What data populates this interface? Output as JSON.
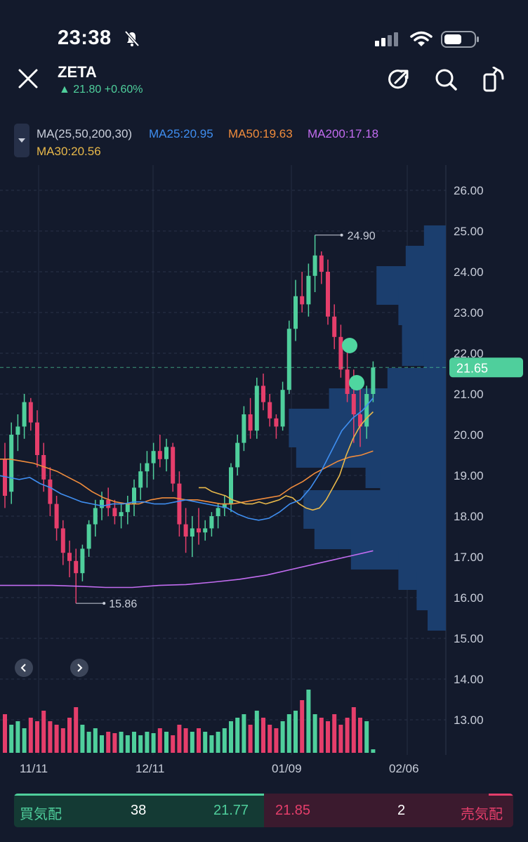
{
  "status_bar": {
    "time": "23:38"
  },
  "header": {
    "ticker": "ZETA",
    "price_change": "▲ 21.80 +0.60%",
    "close_icon": "close-icon",
    "share_icon": "share-icon",
    "search_icon": "search-icon",
    "rotate_icon": "rotate-icon"
  },
  "indicator": {
    "toggle_icon": "caret-down-icon",
    "ma_params": "MA(25,50,200,30)",
    "ma25": "MA25:20.95",
    "ma50": "MA50:19.63",
    "ma200": "MA200:17.18",
    "ma30": "MA30:20.56"
  },
  "colors": {
    "up": "#4fcf9c",
    "down": "#e53e6b",
    "ma25": "#3f8ef0",
    "ma50": "#f08c3c",
    "ma200": "#c26cf0",
    "ma30": "#e8b84a",
    "volume_profile": "#1b3e6e",
    "background": "#131a2c"
  },
  "chart_data": {
    "type": "candlestick",
    "y_axis": {
      "ticks": [
        "26.00",
        "25.00",
        "24.00",
        "23.00",
        "22.00",
        "21.00",
        "20.00",
        "19.00",
        "18.00",
        "17.00",
        "16.00",
        "15.00",
        "14.00",
        "13.00"
      ],
      "range": [
        12.4,
        26.5
      ]
    },
    "x_axis": {
      "ticks": [
        "11/11",
        "12/11",
        "01/09",
        "02/06"
      ]
    },
    "current_price_label": "21.65",
    "current_price": 21.65,
    "high_annotation": {
      "label": "24.90",
      "value": 24.9
    },
    "low_annotation": {
      "label": "15.86",
      "value": 15.86
    },
    "candles": [
      [
        19.4,
        19.8,
        18.2,
        18.5
      ],
      [
        18.6,
        20.3,
        18.3,
        20.0
      ],
      [
        20.0,
        20.5,
        19.6,
        20.2
      ],
      [
        20.2,
        21.0,
        19.9,
        20.8
      ],
      [
        20.8,
        20.9,
        20.1,
        20.3
      ],
      [
        20.3,
        20.6,
        19.2,
        19.5
      ],
      [
        19.5,
        19.8,
        18.6,
        18.9
      ],
      [
        18.9,
        19.2,
        18.0,
        18.3
      ],
      [
        18.3,
        18.5,
        17.4,
        17.7
      ],
      [
        17.7,
        17.9,
        16.8,
        17.1
      ],
      [
        17.1,
        17.4,
        16.5,
        16.9
      ],
      [
        16.9,
        17.2,
        15.86,
        16.6
      ],
      [
        16.6,
        17.3,
        16.4,
        17.2
      ],
      [
        17.2,
        17.9,
        17.0,
        17.8
      ],
      [
        17.8,
        18.4,
        17.5,
        18.2
      ],
      [
        18.2,
        18.6,
        17.9,
        18.4
      ],
      [
        18.4,
        18.7,
        18.0,
        18.2
      ],
      [
        18.2,
        18.4,
        17.8,
        18.0
      ],
      [
        18.0,
        18.3,
        17.7,
        18.1
      ],
      [
        18.1,
        18.5,
        17.8,
        18.3
      ],
      [
        18.3,
        18.9,
        18.0,
        18.7
      ],
      [
        18.7,
        19.3,
        18.4,
        19.1
      ],
      [
        19.1,
        19.6,
        18.7,
        19.3
      ],
      [
        19.3,
        19.8,
        18.9,
        19.6
      ],
      [
        19.6,
        20.0,
        19.2,
        19.4
      ],
      [
        19.4,
        19.9,
        19.1,
        19.7
      ],
      [
        19.7,
        19.8,
        18.6,
        18.8
      ],
      [
        18.8,
        19.1,
        17.5,
        17.8
      ],
      [
        17.8,
        18.2,
        17.1,
        17.5
      ],
      [
        17.5,
        18.0,
        17.0,
        17.7
      ],
      [
        17.7,
        18.2,
        17.3,
        17.6
      ],
      [
        17.6,
        17.9,
        17.4,
        17.7
      ],
      [
        17.7,
        18.1,
        17.5,
        18.0
      ],
      [
        18.0,
        18.3,
        17.7,
        18.2
      ],
      [
        18.2,
        18.5,
        18.0,
        18.3
      ],
      [
        18.3,
        19.3,
        18.1,
        19.2
      ],
      [
        19.2,
        20.0,
        19.0,
        19.8
      ],
      [
        19.8,
        20.7,
        19.6,
        20.5
      ],
      [
        20.5,
        20.9,
        19.9,
        20.1
      ],
      [
        20.1,
        21.4,
        19.9,
        21.2
      ],
      [
        21.2,
        21.5,
        20.6,
        20.8
      ],
      [
        20.8,
        21.0,
        20.2,
        20.4
      ],
      [
        20.4,
        20.5,
        19.9,
        20.2
      ],
      [
        20.2,
        21.3,
        20.1,
        21.1
      ],
      [
        21.1,
        22.8,
        21.0,
        22.6
      ],
      [
        22.6,
        23.8,
        22.3,
        23.4
      ],
      [
        23.4,
        24.0,
        23.0,
        23.2
      ],
      [
        23.2,
        24.2,
        22.9,
        23.9
      ],
      [
        23.9,
        24.9,
        23.5,
        24.4
      ],
      [
        24.4,
        24.5,
        23.7,
        24.0
      ],
      [
        24.0,
        24.3,
        22.7,
        22.9
      ],
      [
        22.9,
        23.2,
        22.1,
        22.4
      ],
      [
        22.4,
        22.7,
        21.4,
        21.6
      ],
      [
        21.6,
        22.2,
        20.8,
        21.0
      ],
      [
        21.0,
        21.6,
        19.8,
        20.5
      ],
      [
        20.5,
        21.3,
        19.7,
        20.2
      ],
      [
        20.2,
        21.2,
        19.9,
        21.0
      ],
      [
        21.0,
        21.8,
        20.8,
        21.65
      ]
    ],
    "volume_relative": [
      0.55,
      0.4,
      0.45,
      0.35,
      0.5,
      0.45,
      0.6,
      0.45,
      0.4,
      0.35,
      0.5,
      0.65,
      0.4,
      0.3,
      0.35,
      0.25,
      0.3,
      0.28,
      0.3,
      0.25,
      0.3,
      0.25,
      0.3,
      0.28,
      0.35,
      0.3,
      0.25,
      0.4,
      0.35,
      0.3,
      0.35,
      0.3,
      0.25,
      0.3,
      0.35,
      0.45,
      0.5,
      0.55,
      0.4,
      0.6,
      0.5,
      0.4,
      0.35,
      0.45,
      0.55,
      0.6,
      0.75,
      0.9,
      0.55,
      0.5,
      0.45,
      0.55,
      0.4,
      0.5,
      0.65,
      0.5,
      0.45,
      0.05
    ],
    "ma25": [
      19.0,
      18.95,
      18.9,
      18.95,
      18.8,
      18.7,
      18.55,
      18.45,
      18.35,
      18.3,
      18.25,
      18.3,
      18.3,
      18.35,
      18.35,
      18.3,
      18.3,
      18.35,
      18.4,
      18.35,
      18.3,
      18.25,
      18.2,
      18.05,
      17.95,
      17.9,
      17.95,
      18.1,
      18.3,
      18.4,
      18.7,
      19.1,
      19.6,
      20.1,
      20.4,
      20.6,
      20.9
    ],
    "ma50": [
      19.4,
      19.4,
      19.35,
      19.3,
      19.2,
      19.1,
      18.95,
      18.8,
      18.6,
      18.45,
      18.35,
      18.3,
      18.3,
      18.4,
      18.45,
      18.45,
      18.4,
      18.4,
      18.35,
      18.3,
      18.3,
      18.35,
      18.4,
      18.45,
      18.5,
      18.7,
      18.85,
      19.05,
      19.2,
      19.35,
      19.45,
      19.5,
      19.6
    ],
    "ma200": [
      16.3,
      16.3,
      16.3,
      16.28,
      16.25,
      16.25,
      16.3,
      16.32,
      16.38,
      16.45,
      16.55,
      16.7,
      16.85,
      17.0,
      17.15
    ],
    "ma30": [
      18.7,
      18.7,
      18.6,
      18.55,
      18.5,
      18.4,
      18.35,
      18.3,
      18.3,
      18.35,
      18.3,
      18.35,
      18.4,
      18.5,
      18.45,
      18.3,
      18.2,
      18.15,
      18.2,
      18.4,
      18.7,
      19.0,
      19.5,
      19.9,
      20.2,
      20.4,
      20.56
    ],
    "volume_profile": [
      [
        25.0,
        0.6
      ],
      [
        24.5,
        1.1
      ],
      [
        24.0,
        1.9
      ],
      [
        23.5,
        1.3
      ],
      [
        23.0,
        1.2
      ],
      [
        22.5,
        1.2
      ],
      [
        22.0,
        0.6
      ],
      [
        21.5,
        1.6
      ],
      [
        21.0,
        3.2
      ],
      [
        20.5,
        4.3
      ],
      [
        20.0,
        4.1
      ],
      [
        19.5,
        2.2
      ],
      [
        19.0,
        1.8
      ],
      [
        18.5,
        3.9
      ],
      [
        18.0,
        3.6
      ],
      [
        17.5,
        2.6
      ],
      [
        17.0,
        1.3
      ],
      [
        16.5,
        0.8
      ],
      [
        16.0,
        0.5
      ]
    ]
  },
  "quote_bar": {
    "bid_label": "買気配",
    "bid_qty": "38",
    "bid_price": "21.77",
    "ask_price": "21.85",
    "ask_qty": "2",
    "ask_label": "売気配"
  }
}
